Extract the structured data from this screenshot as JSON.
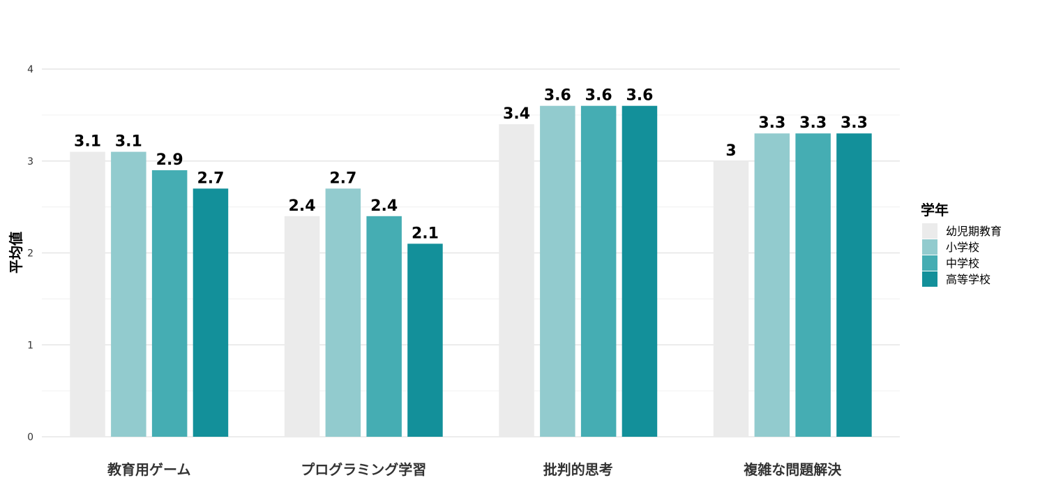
{
  "chart_data": {
    "type": "bar",
    "title": "",
    "xlabel": "",
    "ylabel": "平均値",
    "ylim": [
      0,
      4
    ],
    "yticks": [
      0,
      1,
      2,
      3,
      4
    ],
    "grid": true,
    "legend_position": "right",
    "legend_title": "学年",
    "categories": [
      "教育用ゲーム",
      "プログラミング学習",
      "批判的思考",
      "複雑な問題解決"
    ],
    "series": [
      {
        "name": "幼児期教育",
        "color": "#ebebeb",
        "values": [
          3.1,
          2.4,
          3.4,
          3
        ]
      },
      {
        "name": "小学校",
        "color": "#92cbce",
        "values": [
          3.1,
          2.7,
          3.6,
          3.3
        ]
      },
      {
        "name": "中学校",
        "color": "#45adb3",
        "values": [
          2.9,
          2.4,
          3.6,
          3.3
        ]
      },
      {
        "name": "高等学校",
        "color": "#13909a",
        "values": [
          2.7,
          2.1,
          3.6,
          3.3
        ]
      }
    ]
  }
}
